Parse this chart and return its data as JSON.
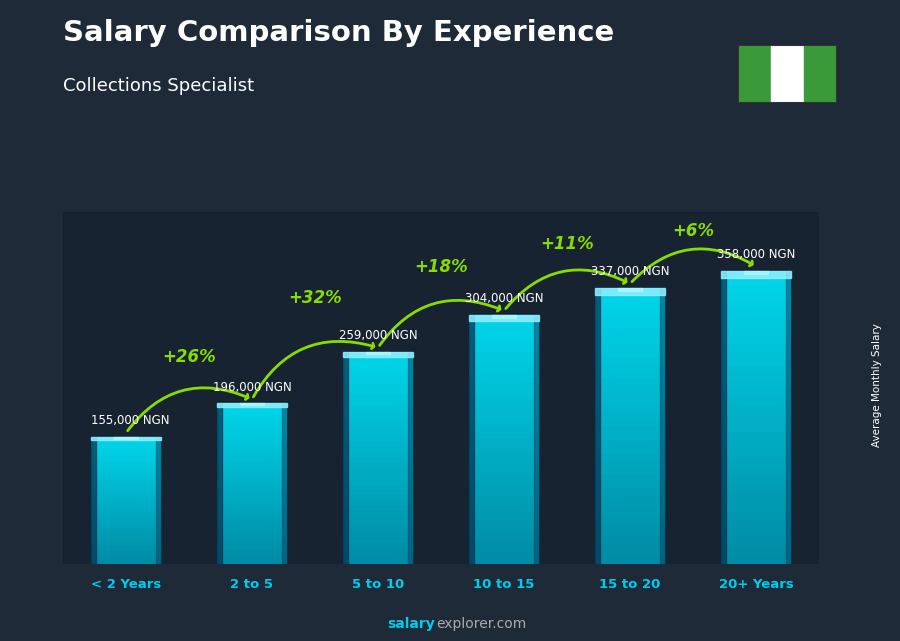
{
  "title": "Salary Comparison By Experience",
  "subtitle": "Collections Specialist",
  "categories": [
    "< 2 Years",
    "2 to 5",
    "5 to 10",
    "10 to 15",
    "15 to 20",
    "20+ Years"
  ],
  "values": [
    155000,
    196000,
    259000,
    304000,
    337000,
    358000
  ],
  "value_labels": [
    "155,000 NGN",
    "196,000 NGN",
    "259,000 NGN",
    "304,000 NGN",
    "337,000 NGN",
    "358,000 NGN"
  ],
  "pct_labels": [
    "+26%",
    "+32%",
    "+18%",
    "+11%",
    "+6%"
  ],
  "bar_color_main": "#00b8d4",
  "bar_color_light": "#40d8f0",
  "bar_color_dark": "#0080a0",
  "bar_top_color": "#60e8ff",
  "bar_left_color": "#006080",
  "bg_color": "#1e2a38",
  "title_color": "#ffffff",
  "subtitle_color": "#ffffff",
  "value_label_color": "#ffffff",
  "pct_color": "#aaee00",
  "xlabel_color": "#00ccee",
  "ylabel_text": "Average Monthly Salary",
  "footer_salary": "salary",
  "footer_rest": "explorer.com",
  "footer_color_bold": "#00ccee",
  "footer_color_rest": "#aaaaaa",
  "ylim_max": 430000,
  "bar_width": 0.55,
  "flag_green": "#3a9a3a",
  "flag_white": "#ffffff",
  "arrow_color": "#88dd00"
}
